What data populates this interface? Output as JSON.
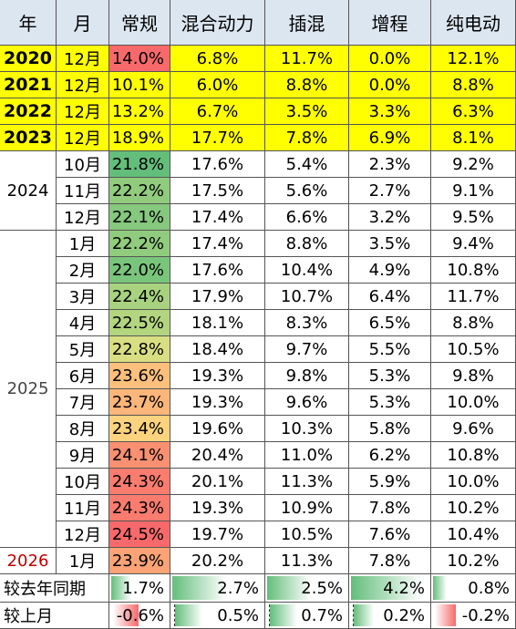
{
  "columns": [
    "年",
    "月",
    "常规",
    "混合动力",
    "插混",
    "增程",
    "纯电动"
  ],
  "chart_data": {
    "type": "table",
    "columns": [
      "年",
      "月",
      "常规",
      "混合动力",
      "插混",
      "增程",
      "纯电动"
    ],
    "rows": [
      {
        "year": "2020",
        "month": "12月",
        "values": [
          "14.0%",
          "6.8%",
          "11.7%",
          "0.0%",
          "12.1%"
        ],
        "highlight": true
      },
      {
        "year": "2021",
        "month": "12月",
        "values": [
          "10.1%",
          "6.0%",
          "8.8%",
          "0.0%",
          "8.8%"
        ],
        "highlight": true
      },
      {
        "year": "2022",
        "month": "12月",
        "values": [
          "13.2%",
          "6.7%",
          "3.5%",
          "3.3%",
          "6.3%"
        ],
        "highlight": true
      },
      {
        "year": "2023",
        "month": "12月",
        "values": [
          "18.9%",
          "17.7%",
          "7.8%",
          "6.9%",
          "8.1%"
        ],
        "highlight": true
      },
      {
        "year": "",
        "month": "10月",
        "values": [
          "21.8%",
          "17.6%",
          "5.4%",
          "2.3%",
          "9.2%"
        ]
      },
      {
        "year": "2024",
        "month": "11月",
        "values": [
          "22.2%",
          "17.5%",
          "5.6%",
          "2.7%",
          "9.1%"
        ]
      },
      {
        "year": "",
        "month": "12月",
        "values": [
          "22.1%",
          "17.4%",
          "6.6%",
          "3.2%",
          "9.5%"
        ]
      },
      {
        "year": "",
        "month": "1月",
        "values": [
          "22.2%",
          "17.4%",
          "8.8%",
          "3.5%",
          "9.4%"
        ]
      },
      {
        "year": "",
        "month": "2月",
        "values": [
          "22.0%",
          "17.6%",
          "10.4%",
          "4.9%",
          "10.8%"
        ]
      },
      {
        "year": "2025",
        "month": "3月",
        "values": [
          "22.4%",
          "17.9%",
          "10.7%",
          "6.4%",
          "11.7%"
        ]
      },
      {
        "year": "",
        "month": "4月",
        "values": [
          "22.5%",
          "18.1%",
          "8.3%",
          "6.5%",
          "8.8%"
        ]
      },
      {
        "year": "",
        "month": "5月",
        "values": [
          "22.8%",
          "18.4%",
          "9.7%",
          "5.5%",
          "10.5%"
        ]
      },
      {
        "year": "",
        "month": "6月",
        "values": [
          "23.6%",
          "19.3%",
          "9.8%",
          "5.3%",
          "9.8%"
        ]
      },
      {
        "year": "",
        "month": "7月",
        "values": [
          "23.7%",
          "19.3%",
          "9.6%",
          "5.3%",
          "10.0%"
        ]
      },
      {
        "year": "",
        "month": "8月",
        "values": [
          "23.4%",
          "19.6%",
          "10.3%",
          "5.8%",
          "9.6%"
        ]
      },
      {
        "year": "",
        "month": "9月",
        "values": [
          "24.1%",
          "20.4%",
          "11.0%",
          "6.2%",
          "10.8%"
        ]
      },
      {
        "year": "",
        "month": "10月",
        "values": [
          "24.3%",
          "20.1%",
          "11.3%",
          "5.9%",
          "10.0%"
        ]
      },
      {
        "year": "",
        "month": "11月",
        "values": [
          "24.3%",
          "19.3%",
          "10.9%",
          "7.8%",
          "10.2%"
        ]
      },
      {
        "year": "",
        "month": "12月",
        "values": [
          "24.5%",
          "19.7%",
          "10.5%",
          "7.6%",
          "10.4%"
        ]
      },
      {
        "year": "2026",
        "month": "1月",
        "values": [
          "23.9%",
          "20.2%",
          "11.3%",
          "7.8%",
          "10.2%"
        ]
      }
    ],
    "diff_rows": [
      {
        "label": "较去年同期",
        "values": [
          "1.7%",
          "2.7%",
          "2.5%",
          "4.2%",
          "0.8%"
        ]
      },
      {
        "label": "较上月",
        "values": [
          "-0.6%",
          "0.5%",
          "0.7%",
          "0.2%",
          "-0.2%"
        ]
      }
    ]
  },
  "colors": {
    "header_bg": "#dce6f1",
    "highlight_row": "#ffff00",
    "scale_low": "#63be7b",
    "scale_mid": "#ffeb84",
    "scale_high": "#f8696b",
    "bar_positive": "#63be7b",
    "bar_negative": "#f8696b",
    "year_2026_text": "#c00000"
  }
}
